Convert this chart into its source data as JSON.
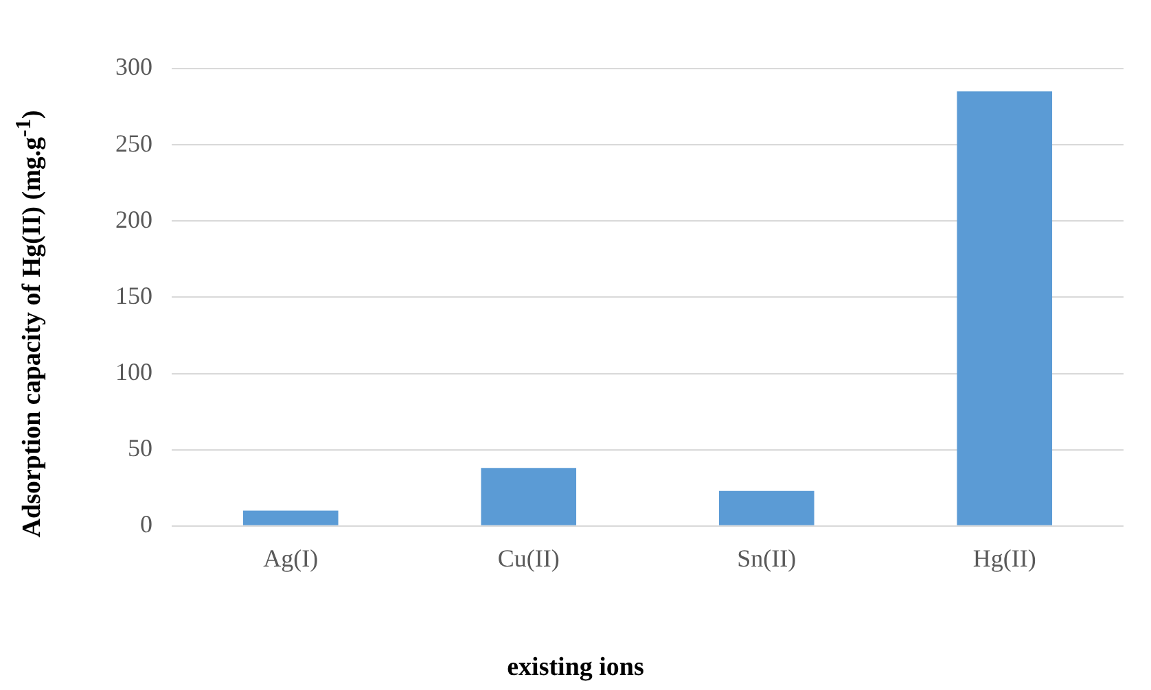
{
  "chart_data": {
    "type": "bar",
    "xlabel": "existing ions",
    "ylabel": "Adsorption capacity of Hg(II) (mg.g$^{-1}$)",
    "categories": [
      "Ag(I)",
      "Cu(II)",
      "Sn(II)",
      "Hg(II)"
    ],
    "values": [
      10,
      38,
      23,
      285
    ],
    "color": "#5b9bd5",
    "ylim": [
      0,
      300
    ],
    "yticks": [
      0,
      50,
      100,
      150,
      200,
      250,
      300
    ],
    "grid": "y",
    "legend": false
  }
}
